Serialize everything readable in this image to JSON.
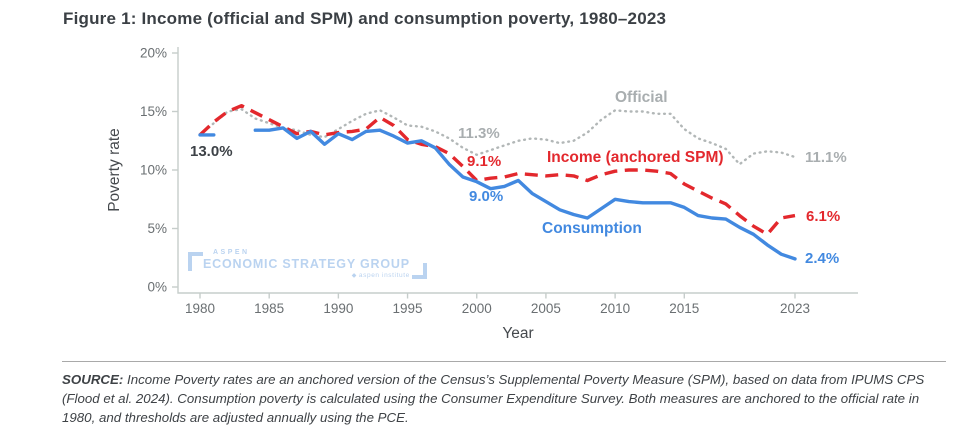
{
  "chart_data": {
    "type": "line",
    "title": "Figure 1: Income (official and SPM) and consumption poverty, 1980–2023",
    "xlabel": "Year",
    "ylabel": "Poverty rate",
    "xlim": [
      1978.4,
      2027.5
    ],
    "ylim": [
      0,
      20
    ],
    "grid": false,
    "legend": "none (direct line labels on plot)",
    "xticks": [
      1980,
      1985,
      1990,
      1995,
      2000,
      2005,
      2010,
      2015,
      2023
    ],
    "yticks": [
      20,
      15,
      10,
      5,
      0
    ],
    "ytick_suffix": "%",
    "x": [
      1980,
      1981,
      1982,
      1983,
      1984,
      1985,
      1986,
      1987,
      1988,
      1989,
      1990,
      1991,
      1992,
      1993,
      1994,
      1995,
      1996,
      1997,
      1998,
      1999,
      2000,
      2001,
      2002,
      2003,
      2004,
      2005,
      2006,
      2007,
      2008,
      2009,
      2010,
      2011,
      2012,
      2013,
      2014,
      2015,
      2016,
      2017,
      2018,
      2019,
      2020,
      2021,
      2022,
      2023
    ],
    "series": [
      {
        "name": "Official",
        "style": "dotted",
        "color": "#b2b7b7",
        "values": [
          13.0,
          14.0,
          15.0,
          15.2,
          14.4,
          14.0,
          13.6,
          13.4,
          13.0,
          12.8,
          13.5,
          14.2,
          14.8,
          15.1,
          14.5,
          13.8,
          13.7,
          13.3,
          12.7,
          11.9,
          11.3,
          11.7,
          12.1,
          12.5,
          12.7,
          12.6,
          12.3,
          12.5,
          13.2,
          14.3,
          15.1,
          15.0,
          15.0,
          14.8,
          14.8,
          13.5,
          12.7,
          12.3,
          11.8,
          10.5,
          11.4,
          11.6,
          11.5,
          11.1
        ]
      },
      {
        "name": "Income (anchored SPM)",
        "style": "dashed",
        "color": "#e3282d",
        "values": [
          13.0,
          14.1,
          15.0,
          15.5,
          14.9,
          14.3,
          13.7,
          13.1,
          13.3,
          13.0,
          13.2,
          13.3,
          13.5,
          14.5,
          13.8,
          12.6,
          12.2,
          12.0,
          11.4,
          10.3,
          9.1,
          9.3,
          9.4,
          9.7,
          9.6,
          9.5,
          9.6,
          9.5,
          9.1,
          9.6,
          9.9,
          10.0,
          10.0,
          9.9,
          9.7,
          8.8,
          8.2,
          7.6,
          7.1,
          6.1,
          5.2,
          4.5,
          5.9,
          6.1
        ]
      },
      {
        "name": "Consumption",
        "style": "solid",
        "color": "#4289e0",
        "values": [
          13.0,
          13.0,
          null,
          null,
          13.4,
          13.4,
          13.6,
          12.7,
          13.3,
          12.2,
          13.1,
          12.6,
          13.3,
          13.4,
          12.9,
          12.3,
          12.5,
          11.9,
          10.5,
          9.4,
          9.0,
          8.4,
          8.6,
          9.1,
          8.0,
          7.3,
          6.6,
          6.2,
          5.9,
          6.7,
          7.5,
          7.3,
          7.2,
          7.2,
          7.2,
          6.8,
          6.1,
          5.9,
          5.8,
          5.1,
          4.5,
          3.6,
          2.8,
          2.4
        ]
      }
    ]
  },
  "annotations": {
    "start_1980": "13.0%",
    "official_mid": "11.3%",
    "income_mid": "9.1%",
    "consumption_mid": "9.0%",
    "official_label": "Official",
    "income_label": "Income (anchored SPM)",
    "consumption_label": "Consumption",
    "official_end": "11.1%",
    "income_end": "6.1%",
    "consumption_end": "2.4%"
  },
  "logo": {
    "top": "ASPEN",
    "main": "ECONOMIC STRATEGY GROUP",
    "sub": "aspen institute"
  },
  "source": {
    "label": "SOURCE:",
    "text": " Income Poverty rates are an anchored version of the Census’s Supplemental Poverty Measure (SPM), based on data from IPUMS CPS (Flood et al. 2024). Consumption poverty is calculated using the Consumer Expenditure Survey. Both measures are anchored to the official rate in 1980, and thresholds are adjusted annually using the PCE."
  },
  "colors": {
    "official_line": "#b2b7b7",
    "income_line": "#e3282d",
    "consumption_line": "#4289e0",
    "annotation_dark": "#3d4247",
    "logo_blue": "#bad3f0",
    "axis": "#c6cdcb",
    "tick_text": "#6a6f72"
  }
}
